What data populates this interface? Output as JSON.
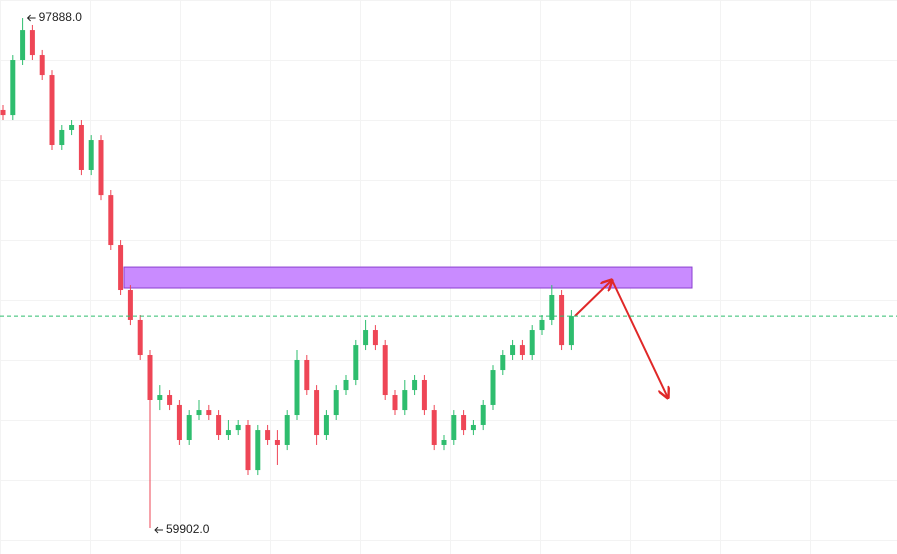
{
  "chart_data": {
    "type": "candlestick",
    "open": [
      91040,
      90660,
      94760,
      96990,
      95130,
      93640,
      88430,
      89550,
      89920,
      86570,
      88800,
      84700,
      80980,
      77630,
      75400,
      72790,
      69440,
      69810,
      69070,
      66460,
      68320,
      68690,
      68320,
      66830,
      67200,
      67580,
      64220,
      67200,
      66460,
      66090,
      68320,
      72420,
      70180,
      66830,
      68320,
      70180,
      70930,
      73530,
      74650,
      73530,
      69810,
      68690,
      70180,
      70930,
      68690,
      66090,
      66460,
      68320,
      67200,
      67580,
      69070,
      71670,
      72790,
      73530,
      72790,
      74650,
      75400,
      77260,
      73530
    ],
    "high": [
      91410,
      95130,
      97888,
      97370,
      95510,
      94010,
      89920,
      90290,
      90290,
      89170,
      89170,
      85080,
      81350,
      78000,
      75770,
      73160,
      70550,
      70180,
      69440,
      68690,
      69440,
      69070,
      68690,
      67950,
      67950,
      67950,
      67580,
      67580,
      67200,
      68690,
      73160,
      72790,
      70550,
      68690,
      70550,
      71300,
      73910,
      75400,
      75020,
      73910,
      70180,
      70930,
      71300,
      71300,
      69070,
      66830,
      68690,
      68690,
      67950,
      69440,
      72040,
      73160,
      73910,
      73910,
      75020,
      75770,
      78000,
      77630,
      76140
    ],
    "low": [
      90290,
      90290,
      94390,
      94760,
      93270,
      88060,
      88060,
      89170,
      86190,
      86190,
      84330,
      80610,
      77260,
      75020,
      72420,
      59902,
      68690,
      68690,
      66090,
      66090,
      67950,
      67950,
      66460,
      66460,
      66830,
      63850,
      63850,
      66090,
      64600,
      65710,
      67950,
      69810,
      66090,
      66460,
      67950,
      69810,
      70550,
      73160,
      73160,
      69440,
      68320,
      68320,
      69810,
      68320,
      65710,
      65710,
      66090,
      66830,
      66830,
      67200,
      68690,
      71300,
      72420,
      72420,
      72420,
      74280,
      75020,
      73160,
      73160
    ],
    "close": [
      90660,
      94760,
      96990,
      95130,
      93640,
      88430,
      89550,
      89920,
      86570,
      88800,
      84700,
      80980,
      77630,
      75400,
      72790,
      69440,
      69810,
      69070,
      66460,
      68320,
      68690,
      68320,
      66830,
      67200,
      67580,
      64220,
      67200,
      66460,
      66090,
      68320,
      72420,
      70180,
      66830,
      68320,
      70180,
      70930,
      73530,
      74650,
      73530,
      69810,
      68690,
      70180,
      70930,
      68690,
      66090,
      66460,
      68320,
      67200,
      67580,
      69070,
      71670,
      72790,
      73530,
      72790,
      74650,
      75400,
      77260,
      73530,
      75690
    ],
    "up_color": "#2ebd6e",
    "down_color": "#ee4656",
    "ylim": [
      57970,
      99230
    ],
    "zone": {
      "top": 79340,
      "bottom": 77780,
      "color": "#c98bff"
    },
    "annotations": [
      {
        "value": 97888,
        "label": "97888.0"
      },
      {
        "value": 59902,
        "label": "59902.0"
      }
    ]
  }
}
